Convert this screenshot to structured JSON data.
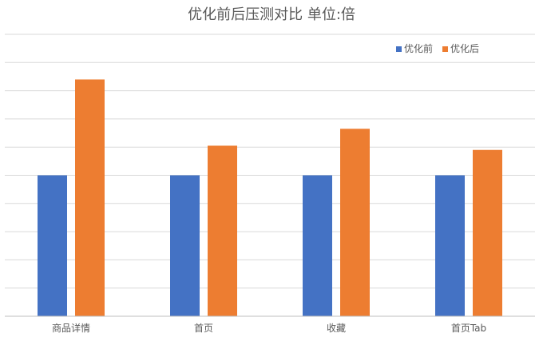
{
  "chart_data": {
    "type": "bar",
    "title": "优化前后压测对比  单位:倍",
    "xlabel": "",
    "ylabel": "",
    "categories": [
      "商品详情",
      "首页",
      "收藏",
      "首页Tab"
    ],
    "series": [
      {
        "name": "优化前",
        "color": "#4472C4",
        "values": [
          1.0,
          1.0,
          1.0,
          1.0
        ]
      },
      {
        "name": "优化后",
        "color": "#ED7D31",
        "values": [
          1.68,
          1.21,
          1.33,
          1.18
        ]
      }
    ],
    "ylim": [
      0,
      2.0
    ],
    "grid_step": 0.2,
    "grid": true,
    "y_tick_labels_visible": false,
    "legend_position": "top-right"
  }
}
